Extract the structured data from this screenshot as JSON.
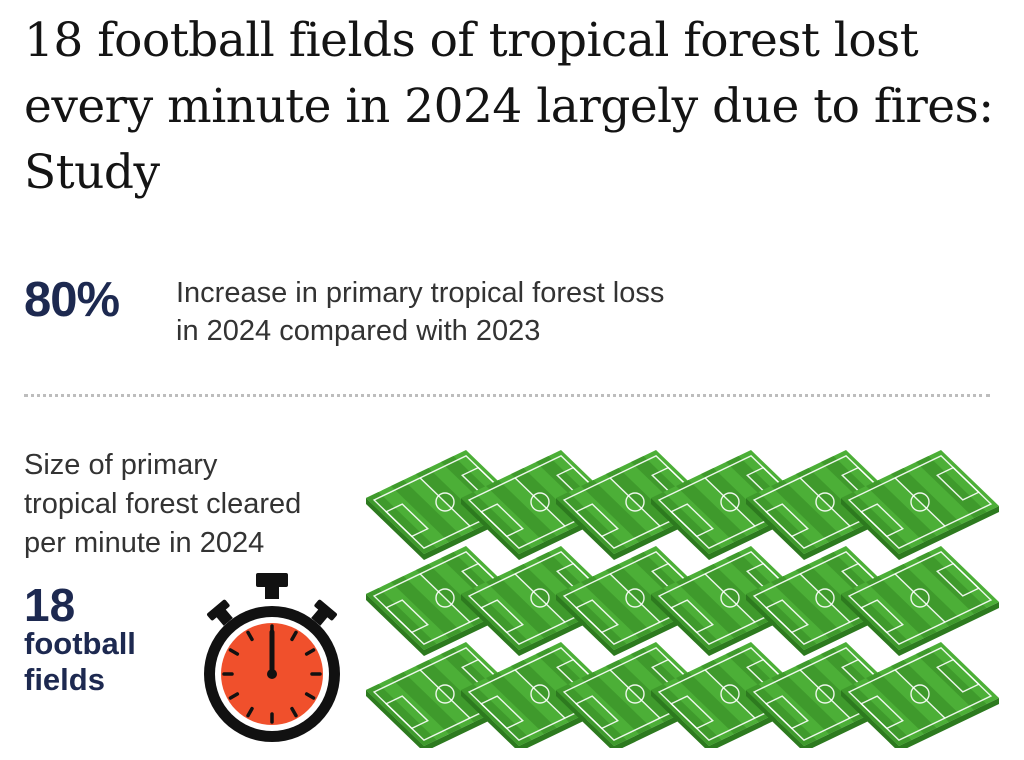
{
  "headline": "18 football fields of tropical forest lost every minute in 2024 largely due to fires: Study",
  "stat": {
    "value": "80%",
    "description_line1": "Increase in primary tropical forest loss",
    "description_line2": "in 2024 compared with 2023"
  },
  "size": {
    "description_line1": "Size of primary",
    "description_line2": "tropical forest cleared",
    "description_line3": "per minute in 2024",
    "count": "18",
    "unit_line1": "football",
    "unit_line2": "fields",
    "fields_shown": 18,
    "rows": 3,
    "columns": 6
  },
  "icons": {
    "timer": "stopwatch-icon",
    "field": "football-field-icon"
  },
  "colors": {
    "headline": "#141414",
    "accent_navy": "#1d2950",
    "field_green": "#4caf37",
    "field_stripe": "#3f9a2c",
    "stopwatch_face": "#f0502c"
  }
}
